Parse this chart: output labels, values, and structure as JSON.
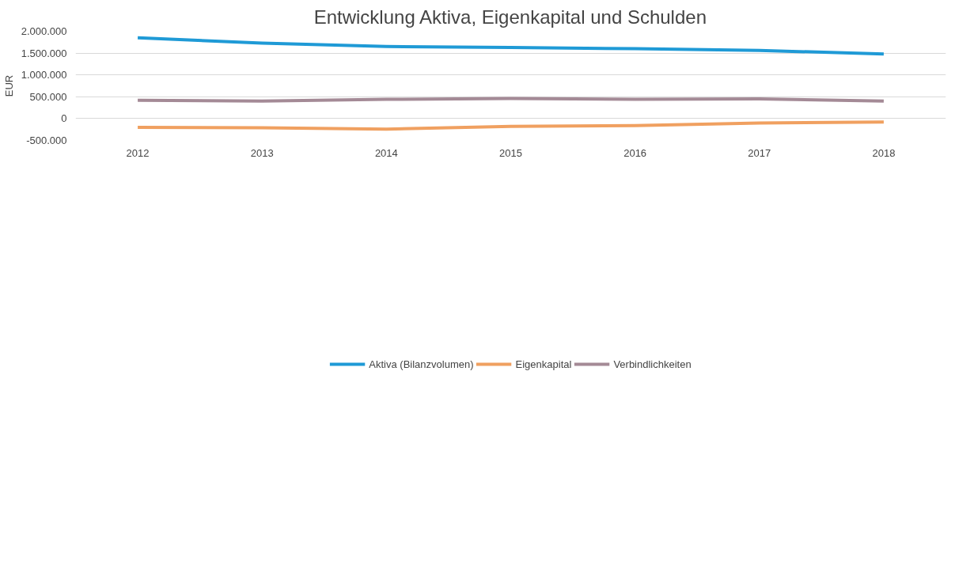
{
  "chart_data": {
    "type": "line",
    "title": "Entwicklung Aktiva, Eigenkapital und Schulden",
    "ylabel": "EUR",
    "categories": [
      "2012",
      "2013",
      "2014",
      "2015",
      "2016",
      "2017",
      "2018"
    ],
    "series": [
      {
        "name": "Aktiva (Bilanzvolumen)",
        "color": "#1f9ad6",
        "values": [
          1850000,
          1730000,
          1650000,
          1630000,
          1600000,
          1560000,
          1480000
        ]
      },
      {
        "name": "Eigenkapital",
        "color": "#f0a060",
        "values": [
          -200000,
          -210000,
          -240000,
          -180000,
          -160000,
          -100000,
          -80000
        ]
      },
      {
        "name": "Verbindlichkeiten",
        "color": "#a48a96",
        "values": [
          420000,
          400000,
          440000,
          460000,
          440000,
          450000,
          400000
        ]
      }
    ],
    "ylim": [
      -500000,
      2000000
    ],
    "yticks": [
      {
        "value": -500000,
        "label": "-500.000"
      },
      {
        "value": 0,
        "label": "0"
      },
      {
        "value": 500000,
        "label": "500.000"
      },
      {
        "value": 1000000,
        "label": "1.000.000"
      },
      {
        "value": 1500000,
        "label": "1.500.000"
      },
      {
        "value": 2000000,
        "label": "2.000.000"
      }
    ],
    "grid": "y",
    "legend": "bottom",
    "marker": "none",
    "line_style": "solid"
  }
}
